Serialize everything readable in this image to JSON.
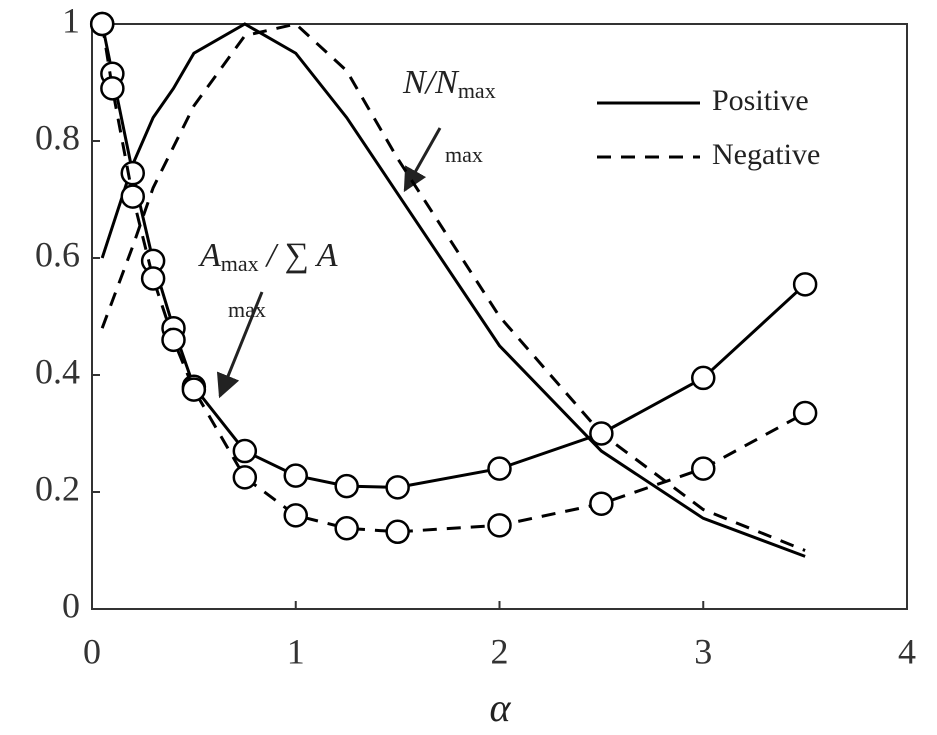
{
  "chart_data": {
    "type": "line",
    "x_label": "α",
    "xlim": [
      0,
      4
    ],
    "xticks": [
      0,
      1,
      2,
      3,
      4
    ],
    "ylim": [
      0,
      1
    ],
    "yticks": [
      0,
      0.2,
      0.4,
      0.6,
      0.8,
      1
    ],
    "grid": false,
    "legend": "upper right",
    "annotations": [
      {
        "text": "N/N",
        "subscript": "max"
      },
      {
        "text": "max"
      },
      {
        "text": "A",
        "subscript": "max",
        "suffix": "/ ∑ A"
      },
      {
        "text": "max"
      }
    ],
    "series": [
      {
        "name": "Positive",
        "color": "#000000",
        "dash": false,
        "marker": "none",
        "x": [
          0.05,
          0.2,
          0.3,
          0.4,
          0.5,
          0.75,
          1,
          1.25,
          1.5,
          2,
          2.5,
          3,
          3.5
        ],
        "values": [
          0.6,
          0.76,
          0.84,
          0.89,
          0.95,
          1.0,
          0.95,
          0.84,
          0.71,
          0.45,
          0.27,
          0.155,
          0.09
        ]
      },
      {
        "name": "Negative",
        "color": "#000000",
        "dash": true,
        "marker": "none",
        "x": [
          0.05,
          0.2,
          0.3,
          0.4,
          0.5,
          0.75,
          1,
          1.25,
          1.5,
          2,
          2.5,
          3,
          3.5
        ],
        "values": [
          0.48,
          0.62,
          0.72,
          0.79,
          0.86,
          0.98,
          1.0,
          0.92,
          0.77,
          0.5,
          0.3,
          0.17,
          0.1
        ]
      },
      {
        "color": "#000000",
        "dash": false,
        "marker": "circle",
        "x": [
          0.05,
          0.1,
          0.2,
          0.3,
          0.4,
          0.5,
          0.75,
          1,
          1.25,
          1.5,
          2,
          2.5,
          3,
          3.5
        ],
        "values": [
          1.0,
          0.915,
          0.745,
          0.595,
          0.48,
          0.38,
          0.27,
          0.228,
          0.21,
          0.208,
          0.24,
          0.3,
          0.395,
          0.555
        ]
      },
      {
        "color": "#000000",
        "dash": true,
        "marker": "circle",
        "x": [
          0.05,
          0.1,
          0.2,
          0.3,
          0.4,
          0.5,
          0.75,
          1,
          1.25,
          1.5,
          2,
          2.5,
          3,
          3.5
        ],
        "values": [
          1.0,
          0.89,
          0.705,
          0.565,
          0.46,
          0.375,
          0.225,
          0.16,
          0.138,
          0.132,
          0.143,
          0.18,
          0.24,
          0.335
        ]
      }
    ]
  }
}
